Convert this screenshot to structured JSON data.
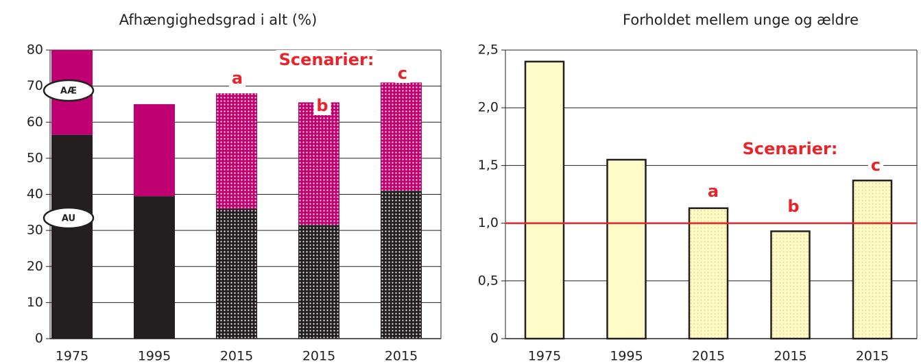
{
  "chart_data": [
    {
      "type": "stacked_bar",
      "title": "Afhængighedsgrad i alt (%)",
      "categories": [
        "1975",
        "1995",
        "2015",
        "2015",
        "2015"
      ],
      "series": [
        {
          "name": "AU",
          "color": "#231f20",
          "values": [
            56.5,
            39.5,
            36,
            31.5,
            41
          ]
        },
        {
          "name": "AÆ",
          "color": "#bf0070",
          "values": [
            23.5,
            25.5,
            32,
            34,
            30
          ]
        }
      ],
      "patterned": [
        false,
        false,
        true,
        true,
        true
      ],
      "ylim": [
        0,
        80
      ],
      "yticks": [
        0,
        10,
        20,
        30,
        40,
        50,
        60,
        70,
        80
      ],
      "grid": true,
      "annotations": [
        "Scenarier:",
        "a",
        "b",
        "c"
      ]
    },
    {
      "type": "bar",
      "title": "Forholdet mellem unge og ældre",
      "categories": [
        "1975",
        "1995",
        "2015",
        "2015",
        "2015"
      ],
      "values": [
        2.4,
        1.55,
        1.13,
        0.93,
        1.37
      ],
      "color": "#fffbc8",
      "patterned": [
        false,
        false,
        true,
        true,
        true
      ],
      "ylim": [
        0,
        2.5
      ],
      "yticks": [
        0,
        {
          "value": 0.5,
          "label": "0,5"
        },
        {
          "value": 1,
          "label": "1,0"
        },
        {
          "value": 1.5,
          "label": "1,5"
        },
        {
          "value": 2,
          "label": "2,0"
        },
        {
          "value": 2.5,
          "label": "2,5"
        }
      ],
      "grid": true,
      "reference_line": 1,
      "reference_color": "#e8242b",
      "annotations": [
        "Scenarier:",
        "a",
        "b",
        "c"
      ]
    }
  ]
}
